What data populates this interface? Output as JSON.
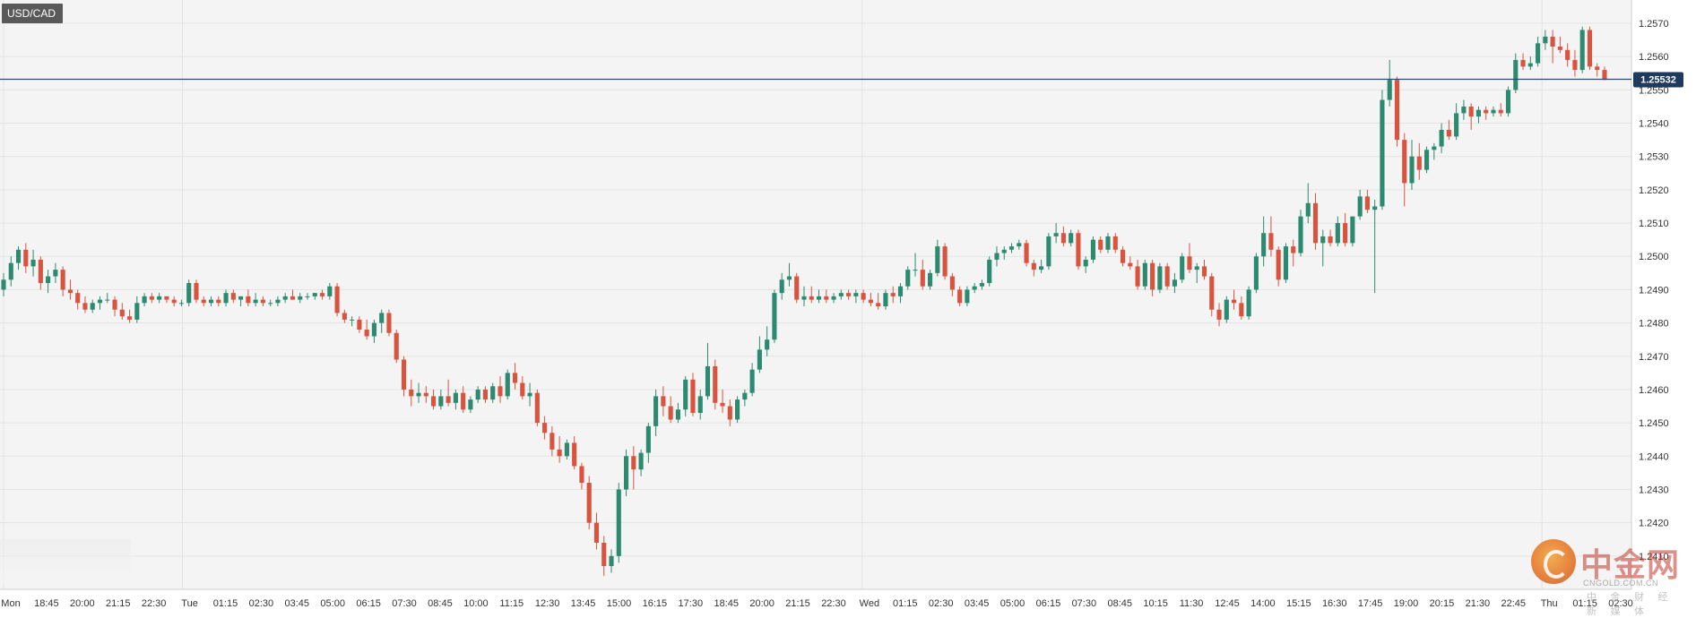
{
  "symbol": "USD/CAD",
  "current_price_label": "1.25532",
  "watermark": {
    "name_cn": "中金网",
    "name_en": "CNGOLD.COM.CN",
    "subtitle_cn": "中 金 财 经 新 媒 体"
  },
  "colors": {
    "background": "#f4f4f4",
    "grid": "#e3e3e3",
    "up": "#2c8a70",
    "down": "#d9543f",
    "wick_up": "#2c8a70",
    "wick_down": "#d9543f",
    "price_line": "#2d4b6e",
    "price_badge": "#1f3a5f",
    "axis_text": "#333333"
  },
  "chart_data": {
    "type": "candlestick",
    "ylim": [
      1.24,
      1.2577
    ],
    "y_ticks": [
      "1.2570",
      "1.2560",
      "1.2550",
      "1.2540",
      "1.2530",
      "1.2520",
      "1.2510",
      "1.2500",
      "1.2490",
      "1.2480",
      "1.2470",
      "1.2460",
      "1.2450",
      "1.2440",
      "1.2430",
      "1.2420",
      "1.2410"
    ],
    "x_ticks": [
      "Mon",
      "18:45",
      "20:00",
      "21:15",
      "22:30",
      "Tue",
      "01:15",
      "02:30",
      "03:45",
      "05:00",
      "06:15",
      "07:30",
      "08:45",
      "10:00",
      "11:15",
      "12:30",
      "13:45",
      "15:00",
      "16:15",
      "17:30",
      "18:45",
      "20:00",
      "21:15",
      "22:30",
      "Wed",
      "01:15",
      "02:30",
      "03:45",
      "05:00",
      "06:15",
      "07:30",
      "08:45",
      "10:15",
      "11:30",
      "12:45",
      "14:00",
      "15:15",
      "16:30",
      "17:45",
      "19:00",
      "20:15",
      "21:30",
      "22:45",
      "Thu",
      "01:15",
      "02:30"
    ],
    "current_price": 1.25532,
    "gridlines": true,
    "candles": [
      [
        1.249,
        1.2495,
        1.2488,
        1.2493
      ],
      [
        1.2493,
        1.25,
        1.2491,
        1.2498
      ],
      [
        1.2498,
        1.2503,
        1.2496,
        1.2502
      ],
      [
        1.2502,
        1.2504,
        1.2495,
        1.2497
      ],
      [
        1.2497,
        1.2502,
        1.2494,
        1.2499
      ],
      [
        1.2499,
        1.25,
        1.249,
        1.2492
      ],
      [
        1.2492,
        1.2496,
        1.2489,
        1.2494
      ],
      [
        1.2494,
        1.2498,
        1.2492,
        1.2496
      ],
      [
        1.2496,
        1.2497,
        1.2488,
        1.249
      ],
      [
        1.249,
        1.2493,
        1.2487,
        1.2489
      ],
      [
        1.2489,
        1.249,
        1.2484,
        1.2486
      ],
      [
        1.2486,
        1.2488,
        1.2483,
        1.2484
      ],
      [
        1.2484,
        1.2487,
        1.2483,
        1.2486
      ],
      [
        1.2486,
        1.2488,
        1.2484,
        1.2487
      ],
      [
        1.2487,
        1.2489,
        1.2486,
        1.2487
      ],
      [
        1.2487,
        1.2488,
        1.2482,
        1.2484
      ],
      [
        1.2484,
        1.2486,
        1.2481,
        1.2482
      ],
      [
        1.2482,
        1.2484,
        1.248,
        1.2481
      ],
      [
        1.2481,
        1.2488,
        1.248,
        1.2486
      ],
      [
        1.2486,
        1.2489,
        1.2485,
        1.2488
      ],
      [
        1.2488,
        1.2489,
        1.2486,
        1.2487
      ],
      [
        1.2487,
        1.2489,
        1.2486,
        1.2488
      ],
      [
        1.2488,
        1.2488,
        1.2486,
        1.2487
      ],
      [
        1.2487,
        1.2488,
        1.2485,
        1.2486
      ],
      [
        1.2486,
        1.2487,
        1.2485,
        1.2486
      ],
      [
        1.2486,
        1.2493,
        1.2485,
        1.2492
      ],
      [
        1.2492,
        1.2493,
        1.2486,
        1.2487
      ],
      [
        1.2487,
        1.2488,
        1.2485,
        1.2486
      ],
      [
        1.2486,
        1.2488,
        1.2485,
        1.2487
      ],
      [
        1.2487,
        1.2488,
        1.2485,
        1.2486
      ],
      [
        1.2486,
        1.249,
        1.2485,
        1.2489
      ],
      [
        1.2489,
        1.249,
        1.2486,
        1.2487
      ],
      [
        1.2487,
        1.2488,
        1.2485,
        1.2488
      ],
      [
        1.2488,
        1.249,
        1.2485,
        1.2486
      ],
      [
        1.2486,
        1.2489,
        1.2485,
        1.2487
      ],
      [
        1.2487,
        1.2488,
        1.2485,
        1.2486
      ],
      [
        1.2486,
        1.2487,
        1.2485,
        1.2486
      ],
      [
        1.2486,
        1.2488,
        1.2485,
        1.2487
      ],
      [
        1.2487,
        1.2489,
        1.2486,
        1.2488
      ],
      [
        1.2488,
        1.249,
        1.2487,
        1.2487
      ],
      [
        1.2487,
        1.2489,
        1.2486,
        1.2488
      ],
      [
        1.2488,
        1.2489,
        1.2487,
        1.2488
      ],
      [
        1.2488,
        1.2489,
        1.2487,
        1.2489
      ],
      [
        1.2489,
        1.249,
        1.2487,
        1.2488
      ],
      [
        1.2488,
        1.2492,
        1.2487,
        1.2491
      ],
      [
        1.2491,
        1.2492,
        1.2482,
        1.2483
      ],
      [
        1.2483,
        1.2484,
        1.248,
        1.2481
      ],
      [
        1.2481,
        1.2482,
        1.2479,
        1.2481
      ],
      [
        1.2481,
        1.2482,
        1.2477,
        1.2478
      ],
      [
        1.2478,
        1.2481,
        1.2475,
        1.2476
      ],
      [
        1.2476,
        1.2481,
        1.2474,
        1.248
      ],
      [
        1.248,
        1.2484,
        1.2477,
        1.2483
      ],
      [
        1.2483,
        1.2484,
        1.2476,
        1.2477
      ],
      [
        1.2477,
        1.2478,
        1.2468,
        1.2469
      ],
      [
        1.2469,
        1.247,
        1.2458,
        1.246
      ],
      [
        1.246,
        1.2463,
        1.2455,
        1.2458
      ],
      [
        1.2458,
        1.2462,
        1.2456,
        1.2459
      ],
      [
        1.2459,
        1.2461,
        1.2456,
        1.2458
      ],
      [
        1.2458,
        1.246,
        1.2454,
        1.2455
      ],
      [
        1.2455,
        1.246,
        1.2454,
        1.2458
      ],
      [
        1.2458,
        1.2463,
        1.2455,
        1.2456
      ],
      [
        1.2456,
        1.246,
        1.2454,
        1.2459
      ],
      [
        1.2459,
        1.2461,
        1.2453,
        1.2454
      ],
      [
        1.2454,
        1.2458,
        1.2453,
        1.2457
      ],
      [
        1.2457,
        1.2461,
        1.2456,
        1.246
      ],
      [
        1.246,
        1.2461,
        1.2456,
        1.2457
      ],
      [
        1.2457,
        1.2462,
        1.2456,
        1.2461
      ],
      [
        1.2461,
        1.2464,
        1.2456,
        1.2458
      ],
      [
        1.2458,
        1.2466,
        1.2457,
        1.2465
      ],
      [
        1.2465,
        1.2468,
        1.246,
        1.2462
      ],
      [
        1.2462,
        1.2464,
        1.2457,
        1.2458
      ],
      [
        1.2458,
        1.2462,
        1.2455,
        1.2459
      ],
      [
        1.2459,
        1.246,
        1.2449,
        1.245
      ],
      [
        1.245,
        1.2452,
        1.2445,
        1.2447
      ],
      [
        1.2447,
        1.2449,
        1.244,
        1.2442
      ],
      [
        1.2442,
        1.2446,
        1.2438,
        1.244
      ],
      [
        1.244,
        1.2445,
        1.2439,
        1.2444
      ],
      [
        1.2444,
        1.2446,
        1.2436,
        1.2437
      ],
      [
        1.2437,
        1.2438,
        1.243,
        1.2432
      ],
      [
        1.2432,
        1.2434,
        1.2418,
        1.242
      ],
      [
        1.242,
        1.2423,
        1.2412,
        1.2414
      ],
      [
        1.2414,
        1.2416,
        1.2404,
        1.2407
      ],
      [
        1.2407,
        1.2412,
        1.2405,
        1.241
      ],
      [
        1.241,
        1.2432,
        1.2408,
        1.243
      ],
      [
        1.243,
        1.2442,
        1.2428,
        1.244
      ],
      [
        1.244,
        1.2443,
        1.243,
        1.2436
      ],
      [
        1.2436,
        1.2442,
        1.2434,
        1.2441
      ],
      [
        1.2441,
        1.245,
        1.2438,
        1.2449
      ],
      [
        1.2449,
        1.246,
        1.2446,
        1.2458
      ],
      [
        1.2458,
        1.2461,
        1.2452,
        1.2455
      ],
      [
        1.2455,
        1.2458,
        1.245,
        1.2451
      ],
      [
        1.2451,
        1.2456,
        1.245,
        1.2454
      ],
      [
        1.2454,
        1.2464,
        1.2452,
        1.2463
      ],
      [
        1.2463,
        1.2465,
        1.2452,
        1.2453
      ],
      [
        1.2453,
        1.246,
        1.2451,
        1.2458
      ],
      [
        1.2458,
        1.2474,
        1.2457,
        1.2467
      ],
      [
        1.2467,
        1.2469,
        1.2454,
        1.2456
      ],
      [
        1.2456,
        1.246,
        1.2453,
        1.2455
      ],
      [
        1.2455,
        1.2457,
        1.2449,
        1.2451
      ],
      [
        1.2451,
        1.2458,
        1.245,
        1.2457
      ],
      [
        1.2457,
        1.246,
        1.2455,
        1.2459
      ],
      [
        1.2459,
        1.2468,
        1.2458,
        1.2466
      ],
      [
        1.2466,
        1.2476,
        1.2465,
        1.2472
      ],
      [
        1.2472,
        1.2479,
        1.247,
        1.2475
      ],
      [
        1.2475,
        1.249,
        1.2474,
        1.2489
      ],
      [
        1.2489,
        1.2495,
        1.2487,
        1.2493
      ],
      [
        1.2493,
        1.2498,
        1.2491,
        1.2494
      ],
      [
        1.2494,
        1.2495,
        1.2486,
        1.2487
      ],
      [
        1.2487,
        1.2491,
        1.2485,
        1.2488
      ],
      [
        1.2488,
        1.2491,
        1.2486,
        1.2487
      ],
      [
        1.2487,
        1.249,
        1.2486,
        1.2488
      ],
      [
        1.2488,
        1.249,
        1.2486,
        1.2487
      ],
      [
        1.2487,
        1.2489,
        1.2486,
        1.2488
      ],
      [
        1.2488,
        1.249,
        1.2487,
        1.2489
      ],
      [
        1.2489,
        1.249,
        1.2487,
        1.2488
      ],
      [
        1.2488,
        1.249,
        1.2486,
        1.2489
      ],
      [
        1.2489,
        1.249,
        1.2486,
        1.2487
      ],
      [
        1.2487,
        1.2489,
        1.2485,
        1.2486
      ],
      [
        1.2486,
        1.2489,
        1.2484,
        1.2485
      ],
      [
        1.2485,
        1.249,
        1.2484,
        1.2489
      ],
      [
        1.2489,
        1.2491,
        1.2486,
        1.2488
      ],
      [
        1.2488,
        1.2492,
        1.2486,
        1.2491
      ],
      [
        1.2491,
        1.2497,
        1.249,
        1.2496
      ],
      [
        1.2496,
        1.2501,
        1.2494,
        1.2496
      ],
      [
        1.2496,
        1.2499,
        1.249,
        1.2491
      ],
      [
        1.2491,
        1.2496,
        1.249,
        1.2495
      ],
      [
        1.2495,
        1.2505,
        1.2494,
        1.2503
      ],
      [
        1.2503,
        1.2504,
        1.2493,
        1.2494
      ],
      [
        1.2494,
        1.2495,
        1.2488,
        1.249
      ],
      [
        1.249,
        1.2491,
        1.2485,
        1.2486
      ],
      [
        1.2486,
        1.2491,
        1.2485,
        1.249
      ],
      [
        1.249,
        1.2492,
        1.2489,
        1.2491
      ],
      [
        1.2491,
        1.2493,
        1.249,
        1.2492
      ],
      [
        1.2492,
        1.25,
        1.2491,
        1.2499
      ],
      [
        1.2499,
        1.2503,
        1.2497,
        1.2501
      ],
      [
        1.2501,
        1.2503,
        1.2499,
        1.2502
      ],
      [
        1.2502,
        1.2504,
        1.2501,
        1.2503
      ],
      [
        1.2503,
        1.2505,
        1.2502,
        1.2504
      ],
      [
        1.2504,
        1.2505,
        1.2497,
        1.2498
      ],
      [
        1.2498,
        1.2499,
        1.2494,
        1.2496
      ],
      [
        1.2496,
        1.2499,
        1.2495,
        1.2497
      ],
      [
        1.2497,
        1.2507,
        1.2496,
        1.2506
      ],
      [
        1.2506,
        1.251,
        1.2504,
        1.2507
      ],
      [
        1.2507,
        1.2509,
        1.2503,
        1.2504
      ],
      [
        1.2504,
        1.2508,
        1.2503,
        1.2507
      ],
      [
        1.2507,
        1.2508,
        1.2496,
        1.2497
      ],
      [
        1.2497,
        1.25,
        1.2495,
        1.2499
      ],
      [
        1.2499,
        1.2506,
        1.2498,
        1.2505
      ],
      [
        1.2505,
        1.2506,
        1.2501,
        1.2502
      ],
      [
        1.2502,
        1.2507,
        1.2501,
        1.2506
      ],
      [
        1.2506,
        1.2507,
        1.2501,
        1.2502
      ],
      [
        1.2502,
        1.2503,
        1.2497,
        1.2498
      ],
      [
        1.2498,
        1.25,
        1.2496,
        1.2497
      ],
      [
        1.2497,
        1.2499,
        1.249,
        1.2491
      ],
      [
        1.2491,
        1.2499,
        1.249,
        1.2498
      ],
      [
        1.2498,
        1.2499,
        1.2488,
        1.249
      ],
      [
        1.249,
        1.2498,
        1.2489,
        1.2497
      ],
      [
        1.2497,
        1.2498,
        1.249,
        1.2491
      ],
      [
        1.2491,
        1.2495,
        1.2489,
        1.2493
      ],
      [
        1.2493,
        1.2501,
        1.2492,
        1.25
      ],
      [
        1.25,
        1.2504,
        1.2495,
        1.2496
      ],
      [
        1.2496,
        1.2498,
        1.2492,
        1.2497
      ],
      [
        1.2497,
        1.2499,
        1.2493,
        1.2494
      ],
      [
        1.2494,
        1.2495,
        1.2482,
        1.2484
      ],
      [
        1.2484,
        1.2486,
        1.2479,
        1.2481
      ],
      [
        1.2481,
        1.2488,
        1.248,
        1.2487
      ],
      [
        1.2487,
        1.249,
        1.2484,
        1.2486
      ],
      [
        1.2486,
        1.2488,
        1.2481,
        1.2482
      ],
      [
        1.2482,
        1.2491,
        1.2481,
        1.249
      ],
      [
        1.249,
        1.2501,
        1.2489,
        1.25
      ],
      [
        1.25,
        1.2512,
        1.2497,
        1.2507
      ],
      [
        1.2507,
        1.2512,
        1.25,
        1.2502
      ],
      [
        1.2502,
        1.2503,
        1.2491,
        1.2493
      ],
      [
        1.2493,
        1.2504,
        1.2492,
        1.2503
      ],
      [
        1.2503,
        1.2505,
        1.2497,
        1.2501
      ],
      [
        1.2501,
        1.2514,
        1.25,
        1.2512
      ],
      [
        1.2512,
        1.2522,
        1.251,
        1.2516
      ],
      [
        1.2516,
        1.2519,
        1.2502,
        1.2504
      ],
      [
        1.2504,
        1.2508,
        1.2497,
        1.2506
      ],
      [
        1.2506,
        1.2508,
        1.2503,
        1.2504
      ],
      [
        1.2504,
        1.2512,
        1.2503,
        1.251
      ],
      [
        1.251,
        1.2513,
        1.2503,
        1.2504
      ],
      [
        1.2504,
        1.2512,
        1.2503,
        1.2512
      ],
      [
        1.2512,
        1.252,
        1.2511,
        1.2518
      ],
      [
        1.2518,
        1.252,
        1.2513,
        1.2514
      ],
      [
        1.2514,
        1.2517,
        1.2489,
        1.2515
      ],
      [
        1.2515,
        1.255,
        1.2514,
        1.2547
      ],
      [
        1.2547,
        1.2559,
        1.2545,
        1.2553
      ],
      [
        1.2553,
        1.2554,
        1.2533,
        1.2535
      ],
      [
        1.2535,
        1.2537,
        1.2515,
        1.2522
      ],
      [
        1.2522,
        1.2535,
        1.252,
        1.253
      ],
      [
        1.253,
        1.2534,
        1.2523,
        1.2526
      ],
      [
        1.2526,
        1.2533,
        1.2525,
        1.2532
      ],
      [
        1.2532,
        1.2534,
        1.2529,
        1.2533
      ],
      [
        1.2533,
        1.254,
        1.2531,
        1.2538
      ],
      [
        1.2538,
        1.2541,
        1.2535,
        1.2536
      ],
      [
        1.2536,
        1.2546,
        1.2535,
        1.2543
      ],
      [
        1.2543,
        1.2547,
        1.2541,
        1.2545
      ],
      [
        1.2545,
        1.2546,
        1.2538,
        1.2542
      ],
      [
        1.2542,
        1.2545,
        1.254,
        1.2544
      ],
      [
        1.2544,
        1.2545,
        1.2541,
        1.2543
      ],
      [
        1.2543,
        1.2545,
        1.2542,
        1.2544
      ],
      [
        1.2544,
        1.2546,
        1.2542,
        1.2543
      ],
      [
        1.2543,
        1.2551,
        1.2542,
        1.255
      ],
      [
        1.255,
        1.2561,
        1.2549,
        1.2559
      ],
      [
        1.2559,
        1.2561,
        1.2556,
        1.2557
      ],
      [
        1.2557,
        1.256,
        1.2556,
        1.2558
      ],
      [
        1.2558,
        1.2566,
        1.2557,
        1.2564
      ],
      [
        1.2564,
        1.2568,
        1.2562,
        1.2566
      ],
      [
        1.2566,
        1.2568,
        1.2558,
        1.2563
      ],
      [
        1.2563,
        1.2566,
        1.2561,
        1.2562
      ],
      [
        1.2562,
        1.2564,
        1.2557,
        1.2559
      ],
      [
        1.2559,
        1.2562,
        1.2554,
        1.2556
      ],
      [
        1.2556,
        1.2569,
        1.2555,
        1.2568
      ],
      [
        1.2568,
        1.2569,
        1.2556,
        1.2557
      ],
      [
        1.2557,
        1.2558,
        1.2554,
        1.2556
      ],
      [
        1.2556,
        1.2557,
        1.2553,
        1.2553
      ]
    ]
  }
}
